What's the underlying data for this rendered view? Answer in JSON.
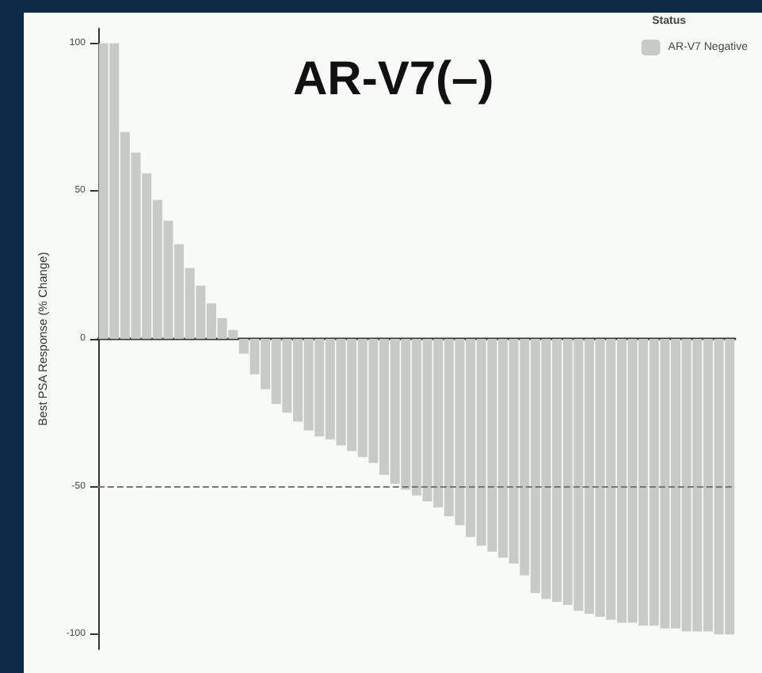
{
  "chart_data": {
    "type": "bar",
    "title": "AR-V7(–)",
    "ylabel": "Best PSA Response (% Change)",
    "legend_title": "Status",
    "categories": [
      null,
      null,
      null,
      null,
      null,
      null,
      null,
      null,
      null,
      null,
      null,
      null,
      null,
      null,
      null,
      null,
      null,
      null,
      null,
      null,
      null,
      null,
      null,
      null,
      null,
      null,
      null,
      null,
      null,
      null,
      null,
      null,
      null,
      null,
      null,
      null,
      null,
      null,
      null,
      null,
      null,
      null,
      null,
      null,
      null,
      null,
      null,
      null,
      null,
      null,
      null,
      null,
      null,
      null,
      null,
      null,
      null,
      null,
      null
    ],
    "series": [
      {
        "name": "AR-V7 Negative",
        "color": "#c8cac8",
        "values": [
          100,
          100,
          70,
          63,
          56,
          47,
          40,
          32,
          24,
          18,
          12,
          7,
          3,
          -5,
          -12,
          -17,
          -22,
          -25,
          -28,
          -31,
          -33,
          -34,
          -36,
          -38,
          -40,
          -42,
          -46,
          -49,
          -51,
          -53,
          -55,
          -57,
          -60,
          -63,
          -67,
          -70,
          -72,
          -74,
          -76,
          -80,
          -86,
          -88,
          -89,
          -90,
          -92,
          -93,
          -94,
          -95,
          -96,
          -96,
          -97,
          -97,
          -98,
          -98,
          -99,
          -99,
          -99,
          -100,
          -100
        ]
      }
    ],
    "ylim": [
      -105,
      105
    ],
    "yticks": [
      -100,
      -50,
      0,
      50,
      100
    ],
    "grid": false,
    "legend": "top right",
    "ref_lines": [
      {
        "axis": "y",
        "value": -50,
        "line_style": "dashed",
        "color": "#777777"
      }
    ]
  }
}
